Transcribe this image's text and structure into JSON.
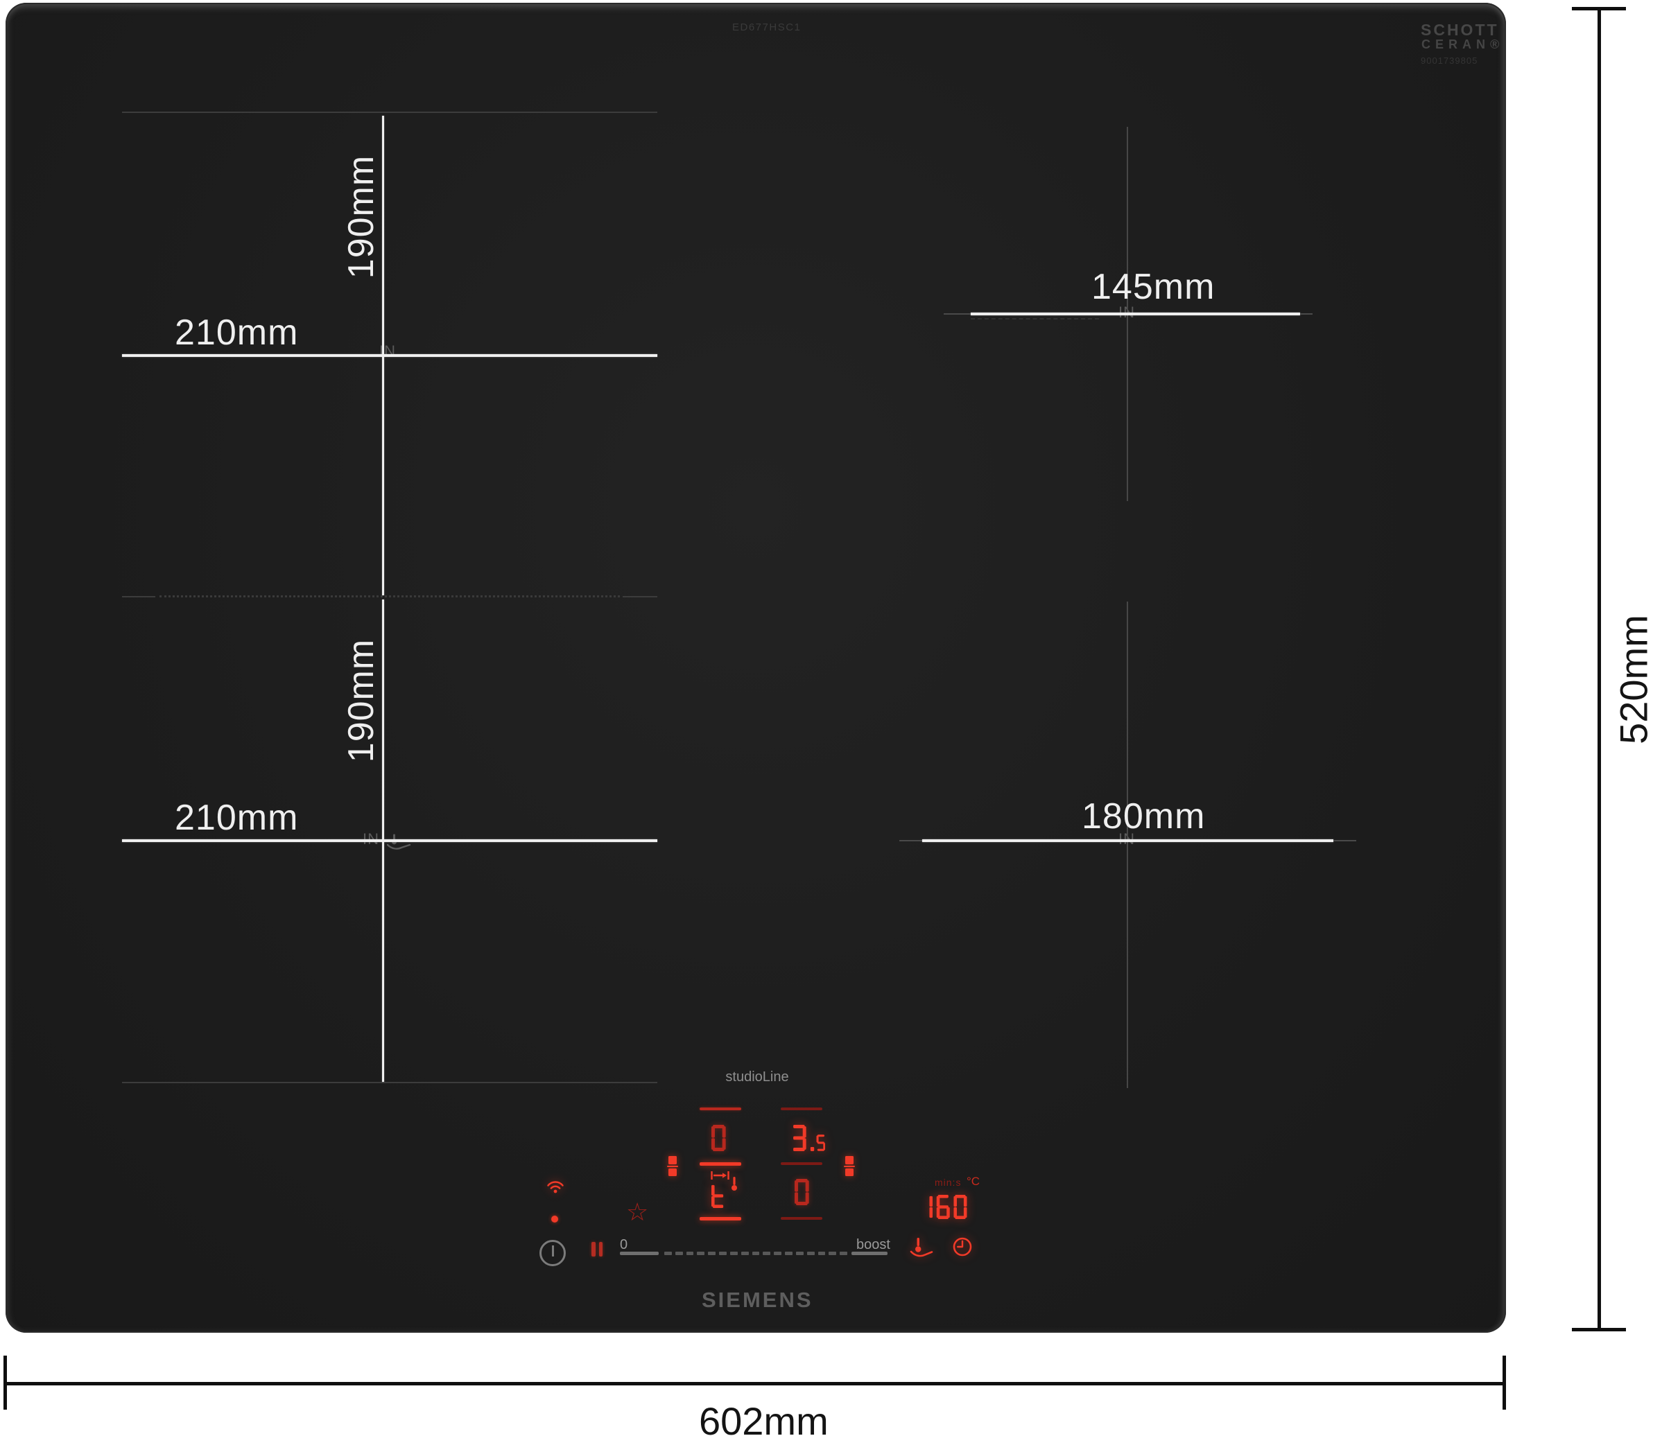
{
  "branding": {
    "model_code": "ED677HSC1",
    "logo": "SIEMENS",
    "series": "studioLine",
    "glass_line1": "SCHOTT",
    "glass_line2": "CERAN®",
    "glass_number": "9001739805"
  },
  "dimension_annotations": {
    "overall_width": "602mm",
    "overall_depth": "520mm",
    "in_marker": "IN",
    "back_left_zone": {
      "width": "210mm",
      "depth": "190mm"
    },
    "front_left_zone": {
      "width": "210mm",
      "depth": "190mm"
    },
    "back_right_zone": {
      "diameter": "145mm"
    },
    "front_right_zone": {
      "diameter": "180mm"
    }
  },
  "control_panel": {
    "left_display": {
      "power": "0",
      "mode": "t"
    },
    "right_display": {
      "power": "3.5",
      "secondary": "0"
    },
    "timer": {
      "value": "160",
      "minutes_label": "min:s",
      "temperature_label": "°C"
    },
    "slider": {
      "min_label": "0",
      "max_label": "boost",
      "dash_count": 17
    },
    "favorite_star_glyph": "☆"
  },
  "colors": {
    "glass_black": "#1d1d1d",
    "led_red_bright": "#f23a28",
    "led_red_mid": "#b8281e",
    "led_red_dim": "#7c1a15",
    "dimension_white": "#efefef",
    "zone_line_gray": "#3c3c3c",
    "annotation_black": "#0f0f0f"
  }
}
